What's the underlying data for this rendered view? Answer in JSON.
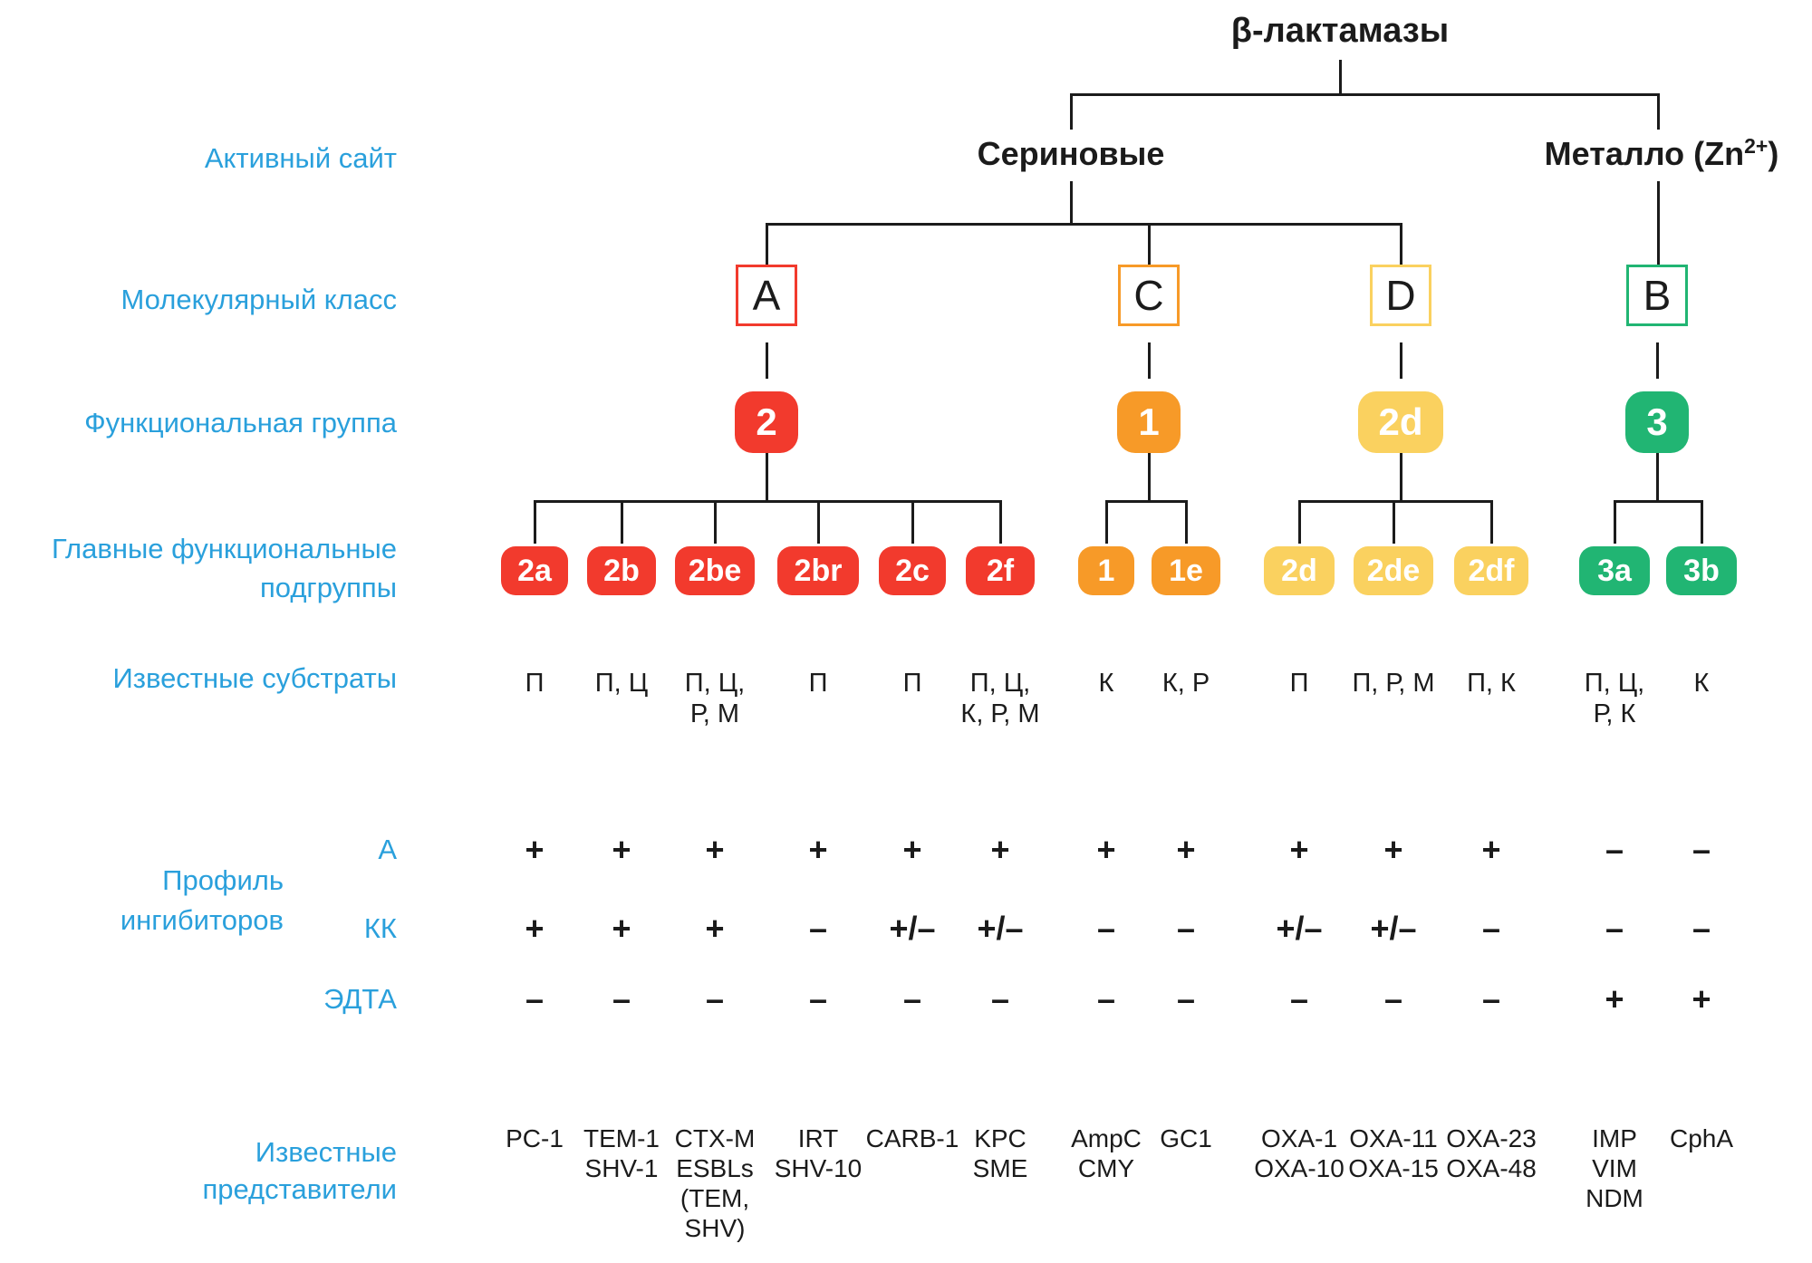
{
  "title": "β-лактамазы",
  "colors": {
    "red": "#f23a2d",
    "orange": "#f79a28",
    "yellow": "#fad15f",
    "green": "#21b573",
    "label_blue": "#2aa0dc",
    "line": "#1b1b1b"
  },
  "labels": {
    "active_site": "Активный сайт",
    "molecular_class": "Молекулярный класс",
    "functional_group": "Функциональная группа",
    "main_subgroups_line1": "Главные функциональные",
    "main_subgroups_line2": "подгруппы",
    "known_substrates": "Известные субстраты",
    "inhibitor_profile_line1": "Профиль",
    "inhibitor_profile_line2": "ингибиторов",
    "inhibitor_a": "А",
    "inhibitor_kk": "КК",
    "inhibitor_edta": "ЭДТА",
    "known_representatives_line1": "Известные",
    "known_representatives_line2": "представители"
  },
  "branches": [
    {
      "id": "serine",
      "label": "Сериновые"
    },
    {
      "id": "metallo",
      "label_pre": "Металло (Zn",
      "label_sup": "2+",
      "label_post": ")"
    }
  ],
  "groups": [
    {
      "molecular_class": "A",
      "functional_group": "2",
      "branch": "serine",
      "color": "red",
      "subgroups": [
        {
          "label": "2a",
          "substrates": [
            "П"
          ],
          "inhibitors": {
            "a": "+",
            "kk": "+",
            "edta": "–"
          },
          "representatives": [
            "PC-1"
          ]
        },
        {
          "label": "2b",
          "substrates": [
            "П, Ц"
          ],
          "inhibitors": {
            "a": "+",
            "kk": "+",
            "edta": "–"
          },
          "representatives": [
            "TEM-1",
            "SHV-1"
          ]
        },
        {
          "label": "2be",
          "substrates": [
            "П, Ц,",
            "Р, М"
          ],
          "inhibitors": {
            "a": "+",
            "kk": "+",
            "edta": "–"
          },
          "representatives": [
            "CTX-M",
            "ESBLs",
            "(TEM,",
            "SHV)"
          ]
        },
        {
          "label": "2br",
          "substrates": [
            "П"
          ],
          "inhibitors": {
            "a": "+",
            "kk": "–",
            "edta": "–"
          },
          "representatives": [
            "IRT",
            "SHV-10"
          ]
        },
        {
          "label": "2c",
          "substrates": [
            "П"
          ],
          "inhibitors": {
            "a": "+",
            "kk": "+/–",
            "edta": "–"
          },
          "representatives": [
            "CARB-1"
          ]
        },
        {
          "label": "2f",
          "substrates": [
            "П, Ц,",
            "К, Р, М"
          ],
          "inhibitors": {
            "a": "+",
            "kk": "+/–",
            "edta": "–"
          },
          "representatives": [
            "KPC",
            "SME"
          ]
        }
      ]
    },
    {
      "molecular_class": "C",
      "functional_group": "1",
      "branch": "serine",
      "color": "orange",
      "subgroups": [
        {
          "label": "1",
          "substrates": [
            "К"
          ],
          "inhibitors": {
            "a": "+",
            "kk": "–",
            "edta": "–"
          },
          "representatives": [
            "AmpC",
            "CMY"
          ]
        },
        {
          "label": "1e",
          "substrates": [
            "К, Р"
          ],
          "inhibitors": {
            "a": "+",
            "kk": "–",
            "edta": "–"
          },
          "representatives": [
            "GC1"
          ]
        }
      ]
    },
    {
      "molecular_class": "D",
      "functional_group": "2d",
      "branch": "serine",
      "color": "yellow",
      "subgroups": [
        {
          "label": "2d",
          "substrates": [
            "П"
          ],
          "inhibitors": {
            "a": "+",
            "kk": "+/–",
            "edta": "–"
          },
          "representatives": [
            "OXA-1",
            "OXA-10"
          ]
        },
        {
          "label": "2de",
          "substrates": [
            "П, Р, М"
          ],
          "inhibitors": {
            "a": "+",
            "kk": "+/–",
            "edta": "–"
          },
          "representatives": [
            "OXA-11",
            "OXA-15"
          ]
        },
        {
          "label": "2df",
          "substrates": [
            "П, К"
          ],
          "inhibitors": {
            "a": "+",
            "kk": "–",
            "edta": "–"
          },
          "representatives": [
            "OXA-23",
            "OXA-48"
          ]
        }
      ]
    },
    {
      "molecular_class": "B",
      "functional_group": "3",
      "branch": "metallo",
      "color": "green",
      "subgroups": [
        {
          "label": "3a",
          "substrates": [
            "П, Ц,",
            "Р, К"
          ],
          "inhibitors": {
            "a": "–",
            "kk": "–",
            "edta": "+"
          },
          "representatives": [
            "IMP",
            "VIM",
            "NDM"
          ]
        },
        {
          "label": "3b",
          "substrates": [
            "К"
          ],
          "inhibitors": {
            "a": "–",
            "kk": "–",
            "edta": "+"
          },
          "representatives": [
            "CphA"
          ]
        }
      ]
    }
  ]
}
